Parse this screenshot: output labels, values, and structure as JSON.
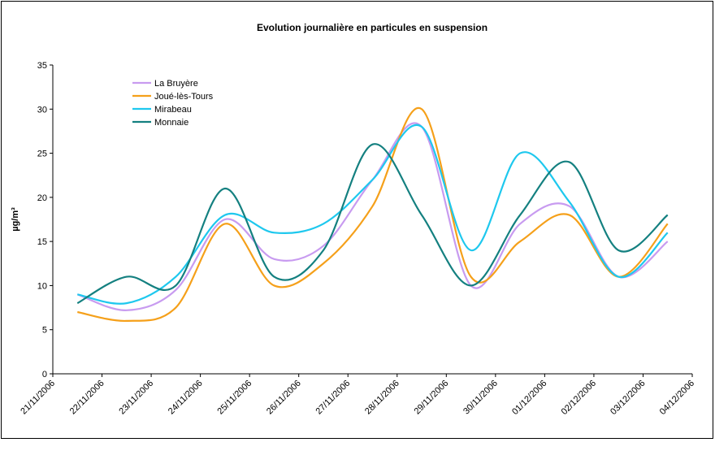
{
  "chart_data": {
    "type": "line",
    "title": "Evolution journalière en particules en suspension",
    "y_label": "µg/m³",
    "x_tick_labels": [
      "21/11/2006",
      "22/11/2006",
      "23/11/2006",
      "24/11/2006",
      "25/11/2006",
      "26/11/2006",
      "27/11/2006",
      "28/11/2006",
      "29/11/2006",
      "30/11/2006",
      "01/12/2006",
      "02/12/2006",
      "03/12/2006",
      "04/12/2006"
    ],
    "series": [
      {
        "name": "La Bruyère",
        "color": "#c89bf0",
        "values": [
          9,
          7.2,
          9.5,
          17.5,
          13,
          14.5,
          22,
          28,
          10,
          17,
          19,
          11,
          15
        ]
      },
      {
        "name": "Joué-lès-Tours",
        "color": "#f5a01a",
        "values": [
          7,
          6,
          7.5,
          17,
          10,
          12.5,
          19,
          30,
          11,
          15,
          18,
          11,
          17
        ]
      },
      {
        "name": "Mirabeau",
        "color": "#1ec8ee",
        "values": [
          9,
          8,
          11,
          18,
          16,
          17,
          22,
          28,
          14,
          25,
          19.5,
          11,
          16
        ]
      },
      {
        "name": "Monnaie",
        "color": "#148080",
        "values": [
          8,
          11,
          10,
          21,
          11,
          14,
          26,
          18,
          10,
          18,
          24,
          14,
          18
        ]
      }
    ],
    "ylim": [
      0,
      35
    ],
    "yticks": [
      0,
      5,
      10,
      15,
      20,
      25,
      30,
      35
    ],
    "smooth": true
  }
}
